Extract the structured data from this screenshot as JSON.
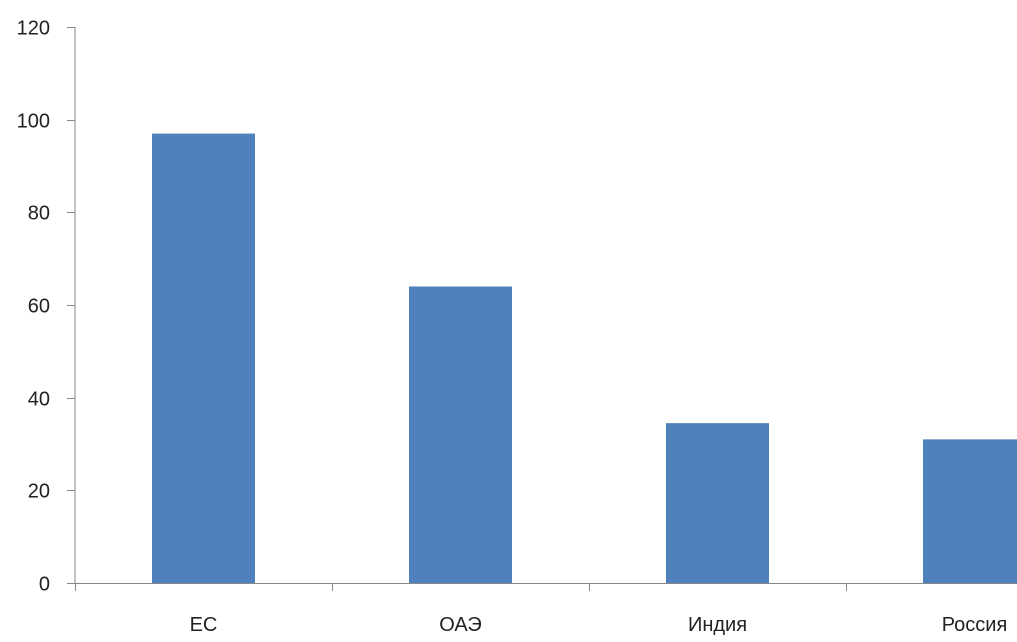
{
  "chart_data": {
    "type": "bar",
    "title": "",
    "xlabel": "",
    "ylabel": "",
    "categories": [
      "ЕС",
      "ОАЭ",
      "Индия",
      "Россия"
    ],
    "values": [
      97,
      64,
      34.5,
      31
    ],
    "ylim": [
      0,
      120
    ],
    "yticks": [
      0,
      20,
      40,
      60,
      80,
      100,
      120
    ],
    "grid": false,
    "legend": "none",
    "bar_color": "#4F81BD",
    "axis_color": "#868686"
  }
}
